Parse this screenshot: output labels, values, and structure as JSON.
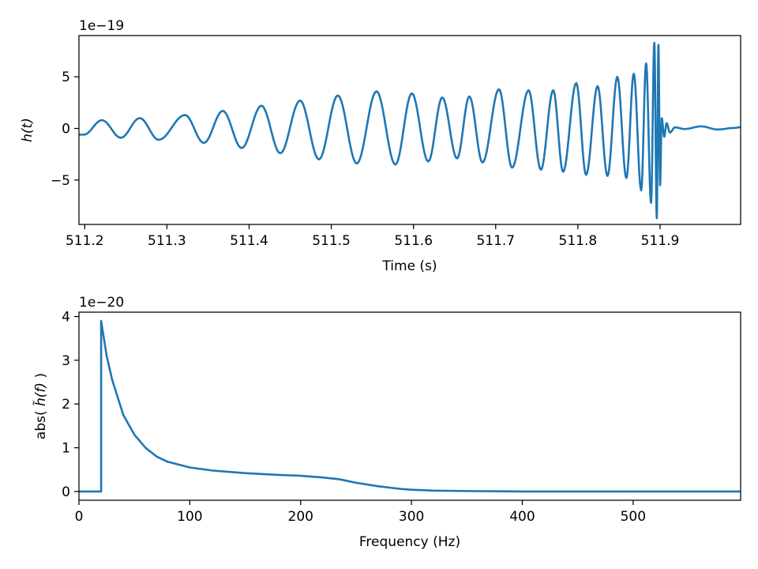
{
  "chart_data": [
    {
      "type": "line",
      "xlabel": "Time (s)",
      "ylabel": "h(t)",
      "offset_text": "1e−19",
      "xlim": [
        511.193,
        511.998
      ],
      "ylim": [
        -9.3,
        9.0
      ],
      "grid": false,
      "xticks": [
        {
          "value": 511.2,
          "label": "511.2"
        },
        {
          "value": 511.3,
          "label": "511.3"
        },
        {
          "value": 511.4,
          "label": "511.4"
        },
        {
          "value": 511.5,
          "label": "511.5"
        },
        {
          "value": 511.6,
          "label": "511.6"
        },
        {
          "value": 511.7,
          "label": "511.7"
        },
        {
          "value": 511.8,
          "label": "511.8"
        },
        {
          "value": 511.9,
          "label": "511.9"
        }
      ],
      "yticks": [
        {
          "value": 5,
          "label": "5"
        },
        {
          "value": 0,
          "label": "0"
        },
        {
          "value": -5,
          "label": "−5"
        }
      ],
      "series": [
        {
          "color": "#1f77b4",
          "description": "chirp waveform; y values in units of 1e-19",
          "x": [
            511.193,
            511.199,
            511.221,
            511.244,
            511.267,
            511.29,
            511.322,
            511.345,
            511.368,
            511.391,
            511.415,
            511.438,
            511.462,
            511.485,
            511.508,
            511.531,
            511.555,
            511.578,
            511.598,
            511.618,
            511.635,
            511.653,
            511.668,
            511.684,
            511.704,
            511.72,
            511.74,
            511.755,
            511.77,
            511.782,
            511.798,
            511.81,
            511.824,
            511.836,
            511.848,
            511.859,
            511.868,
            511.877,
            511.883,
            511.889,
            511.893,
            511.896,
            511.898,
            511.9,
            511.902,
            511.905,
            511.908,
            511.912,
            511.918,
            511.93,
            511.95,
            511.97,
            511.99,
            511.998
          ],
          "y": [
            -0.6,
            -0.6,
            0.8,
            -0.9,
            1.0,
            -1.1,
            1.3,
            -1.4,
            1.7,
            -1.9,
            2.2,
            -2.4,
            2.7,
            -3.0,
            3.2,
            -3.4,
            3.6,
            -3.5,
            3.4,
            -3.2,
            3.0,
            -2.9,
            3.1,
            -3.3,
            3.8,
            -3.8,
            3.7,
            -4.0,
            3.7,
            -4.2,
            4.4,
            -4.5,
            4.1,
            -4.6,
            5.0,
            -4.8,
            5.3,
            -6.0,
            6.3,
            -7.2,
            8.3,
            -8.7,
            8.1,
            -5.5,
            1.0,
            -0.8,
            0.5,
            -0.4,
            0.1,
            -0.05,
            0.2,
            -0.1,
            0.05,
            0.12
          ]
        }
      ]
    },
    {
      "type": "line",
      "xlabel": "Frequency (Hz)",
      "ylabel": "abs( h̃(f) )",
      "ylabel_main": "abs( ",
      "ylabel_var": "h̃(f)",
      "ylabel_end": " )",
      "offset_text": "1e−20",
      "xlim": [
        0,
        597
      ],
      "ylim": [
        -0.2,
        4.1
      ],
      "grid": false,
      "xticks": [
        {
          "value": 0,
          "label": "0"
        },
        {
          "value": 100,
          "label": "100"
        },
        {
          "value": 200,
          "label": "200"
        },
        {
          "value": 300,
          "label": "300"
        },
        {
          "value": 400,
          "label": "400"
        },
        {
          "value": 500,
          "label": "500"
        }
      ],
      "yticks": [
        {
          "value": 4,
          "label": "4"
        },
        {
          "value": 3,
          "label": "3"
        },
        {
          "value": 2,
          "label": "2"
        },
        {
          "value": 1,
          "label": "1"
        },
        {
          "value": 0,
          "label": "0"
        }
      ],
      "series": [
        {
          "color": "#1f77b4",
          "description": "magnitude of frequency-domain waveform; y values in units of 1e-20",
          "x": [
            0,
            20,
            20,
            25,
            30,
            40,
            50,
            60,
            70,
            80,
            100,
            120,
            150,
            180,
            200,
            220,
            235,
            250,
            270,
            290,
            300,
            320,
            350,
            400,
            500,
            597
          ],
          "y": [
            0,
            0,
            3.9,
            3.1,
            2.55,
            1.75,
            1.3,
            1.0,
            0.8,
            0.68,
            0.55,
            0.48,
            0.42,
            0.38,
            0.36,
            0.32,
            0.28,
            0.2,
            0.12,
            0.06,
            0.04,
            0.02,
            0.01,
            0.0,
            0.0,
            0.0
          ]
        }
      ]
    }
  ]
}
